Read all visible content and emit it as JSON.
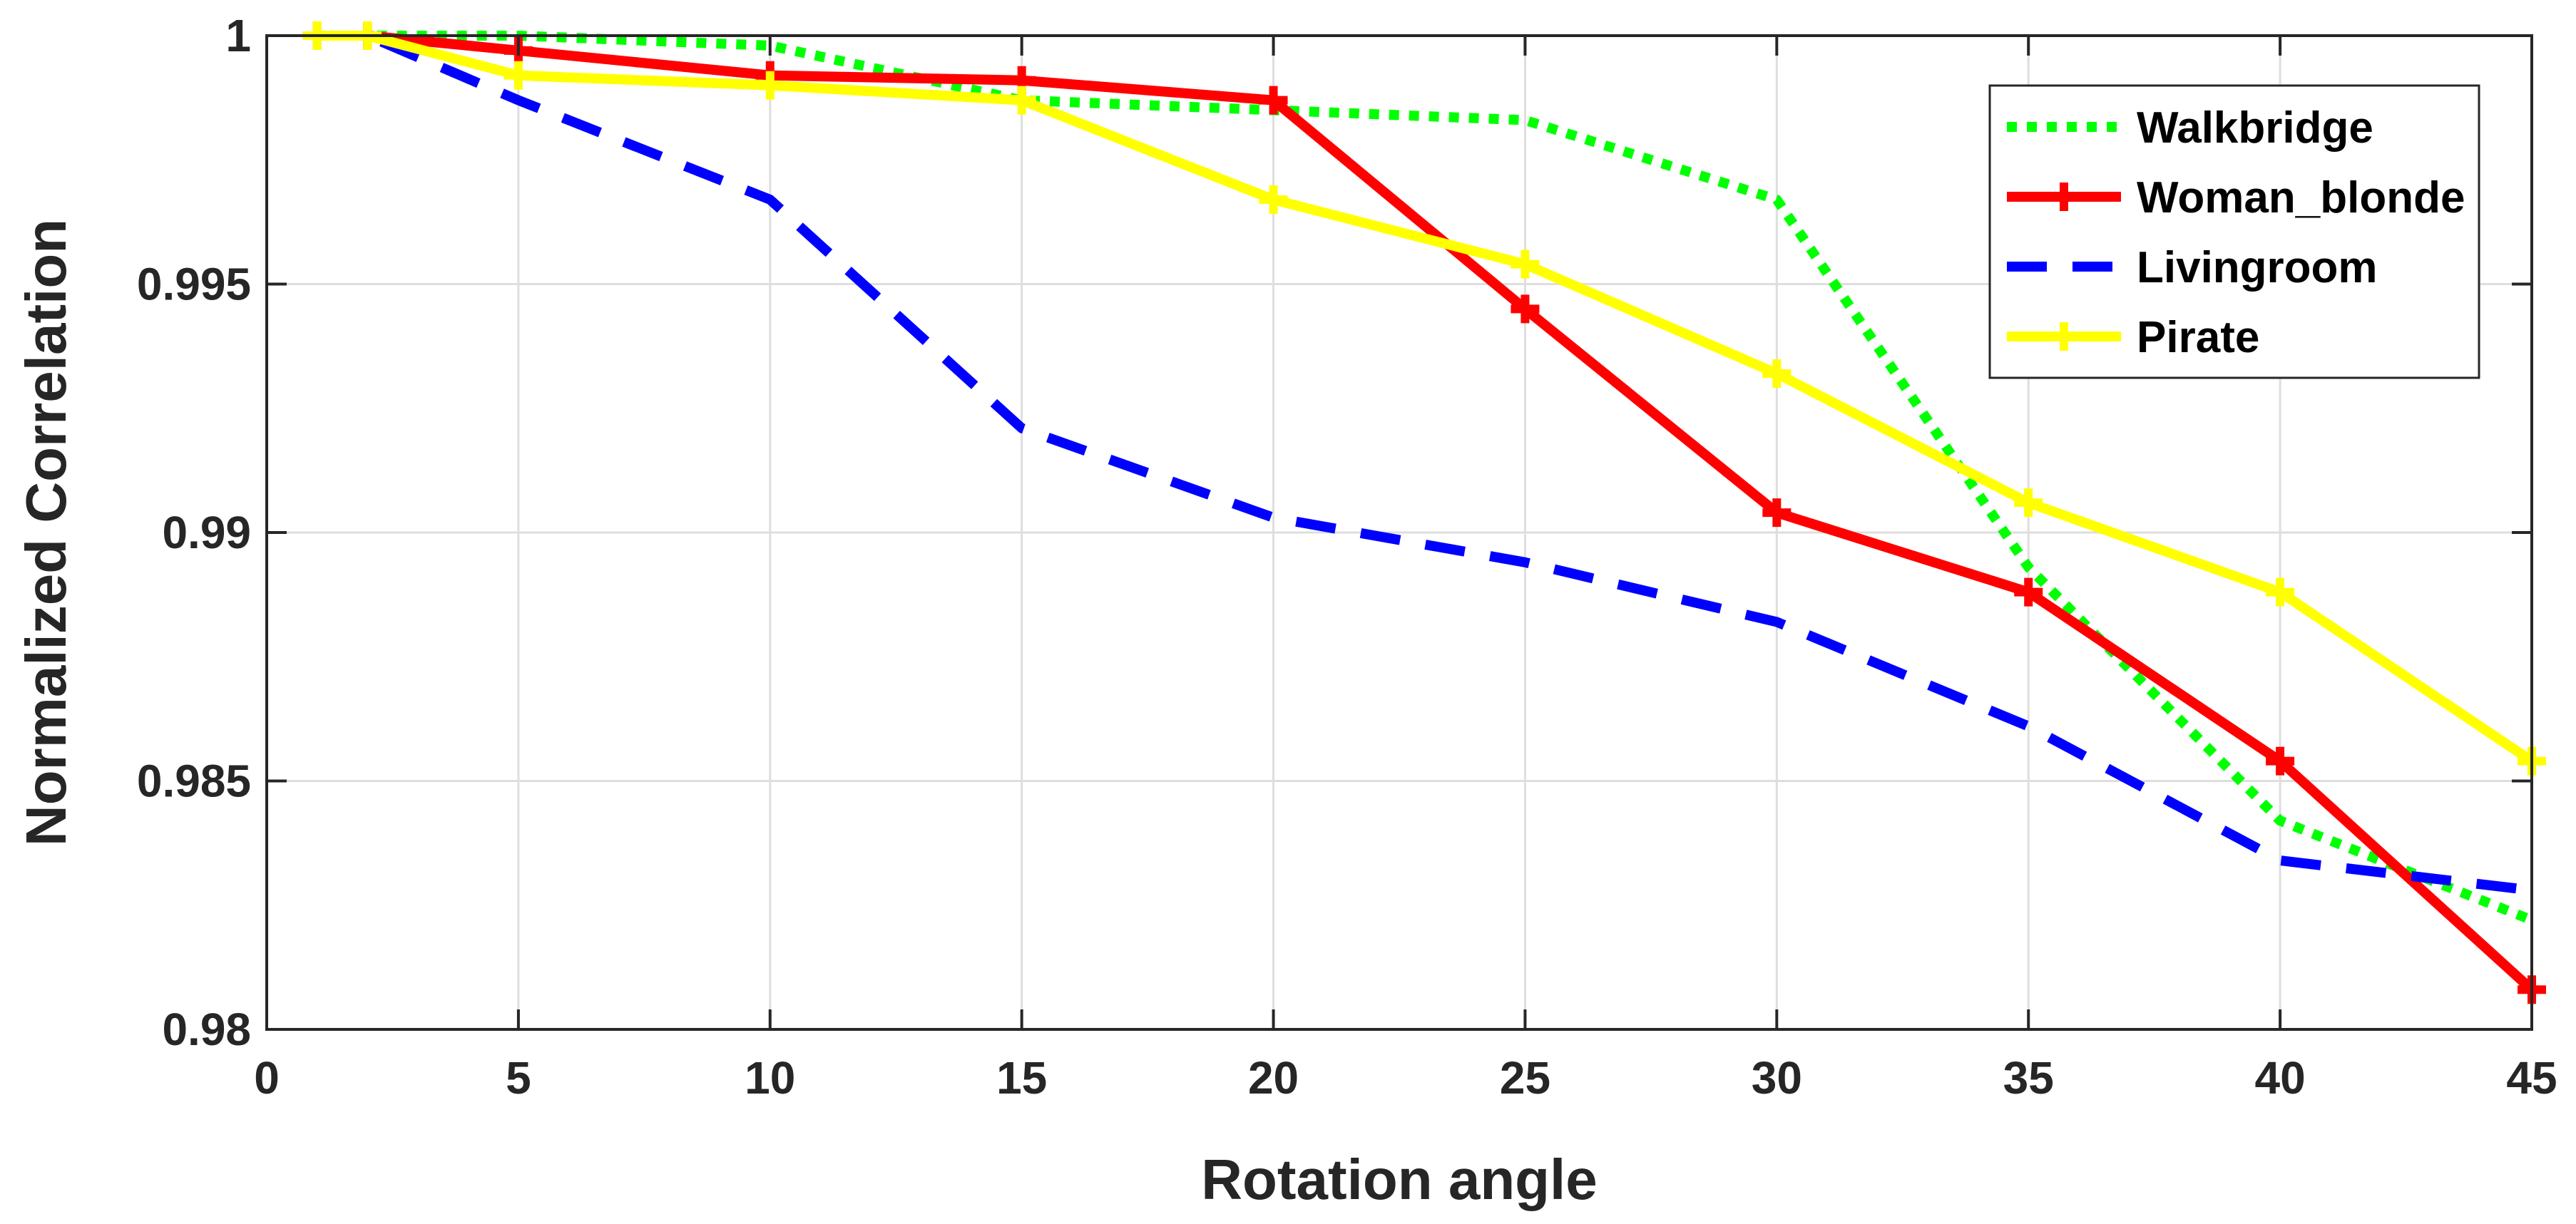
{
  "chart_data": {
    "type": "line",
    "title": "",
    "xlabel": "Rotation angle",
    "ylabel": "Normalized Correlation",
    "xlim": [
      0,
      45
    ],
    "ylim": [
      0.98,
      1
    ],
    "xticks": [
      0,
      5,
      10,
      15,
      20,
      25,
      30,
      35,
      40,
      45
    ],
    "xtick_labels": [
      "0",
      "5",
      "10",
      "15",
      "20",
      "25",
      "30",
      "35",
      "40",
      "45"
    ],
    "yticks": [
      0.98,
      0.985,
      0.99,
      0.995,
      1
    ],
    "ytick_labels": [
      "0.98",
      "0.985",
      "0.99",
      "0.995",
      "1"
    ],
    "grid": true,
    "legend_position": "top-right",
    "x": [
      1,
      2,
      5,
      10,
      15,
      20,
      25,
      30,
      35,
      40,
      45
    ],
    "series": [
      {
        "name": "Walkbridge",
        "color": "#00ff00",
        "style": "dotted",
        "marker": "none",
        "values": [
          1.0,
          1.0,
          1.0,
          0.9998,
          0.9987,
          0.9985,
          0.9983,
          0.9967,
          0.9893,
          0.9842,
          0.9822
        ]
      },
      {
        "name": "Woman_blonde",
        "color": "#ff0000",
        "style": "solid",
        "marker": "plus",
        "values": [
          1.0,
          1.0,
          0.9997,
          0.9992,
          0.9991,
          0.9987,
          0.9945,
          0.9904,
          0.9888,
          0.9854,
          0.9808
        ]
      },
      {
        "name": "Livingroom",
        "color": "#0000ff",
        "style": "dashed",
        "marker": "none",
        "values": [
          1.0,
          1.0,
          0.9987,
          0.9967,
          0.9921,
          0.9903,
          0.9894,
          0.9882,
          0.9861,
          0.9834,
          0.9828
        ]
      },
      {
        "name": "Pirate",
        "color": "#ffff00",
        "style": "solid",
        "marker": "plus",
        "values": [
          1.0,
          1.0,
          0.9992,
          0.999,
          0.9987,
          0.9967,
          0.9954,
          0.9932,
          0.9906,
          0.9888,
          0.9854
        ]
      }
    ]
  }
}
